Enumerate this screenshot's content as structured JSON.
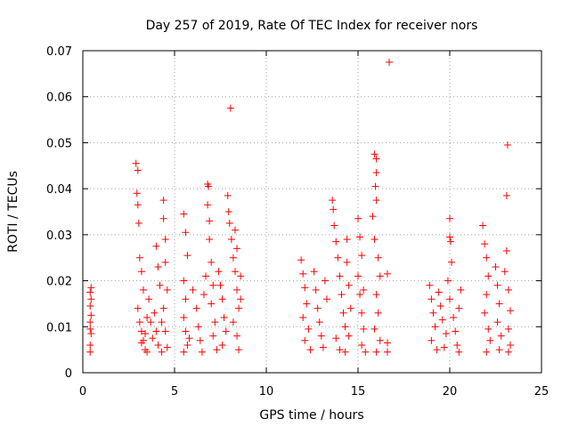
{
  "chart_data": {
    "type": "scatter",
    "title": "Day 257 of 2019, Rate Of TEC Index for receiver nors",
    "xlabel": "GPS time / hours",
    "ylabel": "ROTI / TECUs",
    "xlim": [
      0,
      25
    ],
    "ylim": [
      0,
      0.07
    ],
    "xticks": [
      0,
      5,
      10,
      15,
      20,
      25
    ],
    "xtick_labels": [
      "0",
      "5",
      "10",
      "15",
      "20",
      "25"
    ],
    "yticks": [
      0,
      0.01,
      0.02,
      0.03,
      0.04,
      0.05,
      0.06,
      0.07
    ],
    "ytick_labels": [
      "0",
      "0.01",
      "0.02",
      "0.03",
      "0.04",
      "0.05",
      "0.06",
      "0.07"
    ],
    "grid": true,
    "marker": "+",
    "color": "#ff0000",
    "series": [
      {
        "name": "ROTI",
        "points": [
          [
            0.4,
            0.0045
          ],
          [
            0.4,
            0.006
          ],
          [
            0.45,
            0.0085
          ],
          [
            0.4,
            0.011
          ],
          [
            0.45,
            0.0125
          ],
          [
            0.4,
            0.0145
          ],
          [
            0.45,
            0.016
          ],
          [
            0.4,
            0.0175
          ],
          [
            0.45,
            0.0185
          ],
          [
            0.4,
            0.0095
          ],
          [
            2.9,
            0.0455
          ],
          [
            3.0,
            0.044
          ],
          [
            2.95,
            0.039
          ],
          [
            3.0,
            0.0365
          ],
          [
            3.05,
            0.0325
          ],
          [
            3.1,
            0.025
          ],
          [
            3.2,
            0.022
          ],
          [
            3.3,
            0.018
          ],
          [
            3.0,
            0.014
          ],
          [
            3.1,
            0.011
          ],
          [
            3.2,
            0.009
          ],
          [
            3.3,
            0.007
          ],
          [
            3.4,
            0.005
          ],
          [
            3.5,
            0.012
          ],
          [
            3.6,
            0.016
          ],
          [
            3.2,
            0.0065
          ],
          [
            3.4,
            0.0085
          ],
          [
            3.7,
            0.011
          ],
          [
            3.8,
            0.0075
          ],
          [
            3.5,
            0.0045
          ],
          [
            4.0,
            0.0275
          ],
          [
            4.1,
            0.023
          ],
          [
            4.2,
            0.019
          ],
          [
            3.9,
            0.013
          ],
          [
            4.0,
            0.009
          ],
          [
            4.1,
            0.006
          ],
          [
            4.3,
            0.011
          ],
          [
            4.4,
            0.0375
          ],
          [
            4.4,
            0.0335
          ],
          [
            4.5,
            0.029
          ],
          [
            4.5,
            0.024
          ],
          [
            4.6,
            0.018
          ],
          [
            4.4,
            0.014
          ],
          [
            4.5,
            0.009
          ],
          [
            4.6,
            0.0055
          ],
          [
            4.3,
            0.0045
          ],
          [
            5.5,
            0.0345
          ],
          [
            5.6,
            0.0305
          ],
          [
            5.7,
            0.0255
          ],
          [
            5.5,
            0.02
          ],
          [
            5.6,
            0.016
          ],
          [
            5.5,
            0.012
          ],
          [
            5.6,
            0.009
          ],
          [
            5.7,
            0.006
          ],
          [
            5.5,
            0.0045
          ],
          [
            5.8,
            0.0075
          ],
          [
            6.0,
            0.018
          ],
          [
            6.2,
            0.014
          ],
          [
            6.3,
            0.01
          ],
          [
            6.4,
            0.007
          ],
          [
            6.5,
            0.0045
          ],
          [
            6.6,
            0.017
          ],
          [
            6.7,
            0.021
          ],
          [
            6.8,
            0.041
          ],
          [
            6.85,
            0.0405
          ],
          [
            6.8,
            0.0365
          ],
          [
            6.9,
            0.033
          ],
          [
            6.9,
            0.029
          ],
          [
            7.0,
            0.024
          ],
          [
            7.1,
            0.019
          ],
          [
            7.0,
            0.015
          ],
          [
            7.2,
            0.011
          ],
          [
            7.1,
            0.008
          ],
          [
            7.3,
            0.005
          ],
          [
            7.4,
            0.022
          ],
          [
            7.5,
            0.019
          ],
          [
            7.6,
            0.016
          ],
          [
            7.7,
            0.012
          ],
          [
            7.8,
            0.009
          ],
          [
            7.6,
            0.006
          ],
          [
            7.9,
            0.0385
          ],
          [
            7.95,
            0.035
          ],
          [
            8.0,
            0.0325
          ],
          [
            8.05,
            0.0575
          ],
          [
            8.1,
            0.029
          ],
          [
            8.2,
            0.025
          ],
          [
            8.3,
            0.031
          ],
          [
            8.4,
            0.027
          ],
          [
            8.3,
            0.022
          ],
          [
            8.4,
            0.018
          ],
          [
            8.5,
            0.014
          ],
          [
            8.2,
            0.011
          ],
          [
            8.4,
            0.008
          ],
          [
            8.5,
            0.005
          ],
          [
            8.6,
            0.021
          ],
          [
            8.6,
            0.016
          ],
          [
            11.9,
            0.0245
          ],
          [
            12.0,
            0.0215
          ],
          [
            12.1,
            0.0185
          ],
          [
            12.2,
            0.015
          ],
          [
            12.0,
            0.012
          ],
          [
            12.3,
            0.0095
          ],
          [
            12.1,
            0.007
          ],
          [
            12.4,
            0.005
          ],
          [
            12.6,
            0.022
          ],
          [
            12.7,
            0.018
          ],
          [
            12.8,
            0.014
          ],
          [
            12.9,
            0.011
          ],
          [
            13.0,
            0.008
          ],
          [
            13.1,
            0.0055
          ],
          [
            13.2,
            0.02
          ],
          [
            13.3,
            0.016
          ],
          [
            13.6,
            0.0375
          ],
          [
            13.65,
            0.0355
          ],
          [
            13.7,
            0.032
          ],
          [
            13.8,
            0.0285
          ],
          [
            13.9,
            0.025
          ],
          [
            14.0,
            0.021
          ],
          [
            14.1,
            0.017
          ],
          [
            14.2,
            0.013
          ],
          [
            14.3,
            0.01
          ],
          [
            13.8,
            0.0075
          ],
          [
            14.0,
            0.005
          ],
          [
            14.4,
            0.029
          ],
          [
            14.4,
            0.024
          ],
          [
            14.5,
            0.019
          ],
          [
            14.6,
            0.014
          ],
          [
            14.5,
            0.008
          ],
          [
            14.3,
            0.0045
          ],
          [
            15.0,
            0.0335
          ],
          [
            15.1,
            0.0295
          ],
          [
            15.2,
            0.0255
          ],
          [
            15.0,
            0.021
          ],
          [
            15.1,
            0.017
          ],
          [
            15.2,
            0.013
          ],
          [
            15.3,
            0.0095
          ],
          [
            15.2,
            0.006
          ],
          [
            15.4,
            0.0045
          ],
          [
            15.3,
            0.018
          ],
          [
            15.9,
            0.0475
          ],
          [
            16.0,
            0.0465
          ],
          [
            16.0,
            0.0435
          ],
          [
            15.95,
            0.0405
          ],
          [
            16.0,
            0.0375
          ],
          [
            15.8,
            0.034
          ],
          [
            15.9,
            0.029
          ],
          [
            16.1,
            0.025
          ],
          [
            16.2,
            0.021
          ],
          [
            16.0,
            0.017
          ],
          [
            16.1,
            0.013
          ],
          [
            15.9,
            0.0095
          ],
          [
            16.2,
            0.007
          ],
          [
            16.0,
            0.0045
          ],
          [
            16.7,
            0.0675
          ],
          [
            16.6,
            0.0215
          ],
          [
            16.6,
            0.0065
          ],
          [
            16.6,
            0.0045
          ],
          [
            18.9,
            0.019
          ],
          [
            19.0,
            0.016
          ],
          [
            19.1,
            0.013
          ],
          [
            19.2,
            0.01
          ],
          [
            19.0,
            0.007
          ],
          [
            19.3,
            0.005
          ],
          [
            19.4,
            0.0175
          ],
          [
            19.5,
            0.0145
          ],
          [
            19.6,
            0.0115
          ],
          [
            19.8,
            0.0085
          ],
          [
            19.7,
            0.0055
          ],
          [
            19.9,
            0.02
          ],
          [
            20.0,
            0.0335
          ],
          [
            20.0,
            0.0295
          ],
          [
            20.05,
            0.0285
          ],
          [
            20.1,
            0.024
          ],
          [
            20.0,
            0.016
          ],
          [
            20.2,
            0.012
          ],
          [
            20.3,
            0.009
          ],
          [
            20.4,
            0.006
          ],
          [
            20.5,
            0.0045
          ],
          [
            20.5,
            0.014
          ],
          [
            20.6,
            0.018
          ],
          [
            21.8,
            0.032
          ],
          [
            21.9,
            0.028
          ],
          [
            22.0,
            0.025
          ],
          [
            22.1,
            0.021
          ],
          [
            22.0,
            0.017
          ],
          [
            21.9,
            0.013
          ],
          [
            22.1,
            0.0095
          ],
          [
            22.2,
            0.007
          ],
          [
            22.0,
            0.0045
          ],
          [
            22.5,
            0.023
          ],
          [
            22.6,
            0.019
          ],
          [
            22.7,
            0.015
          ],
          [
            22.6,
            0.011
          ],
          [
            22.8,
            0.008
          ],
          [
            22.7,
            0.005
          ],
          [
            23.0,
            0.022
          ],
          [
            23.1,
            0.0265
          ],
          [
            23.1,
            0.0385
          ],
          [
            23.15,
            0.0495
          ],
          [
            23.2,
            0.018
          ],
          [
            23.3,
            0.0135
          ],
          [
            23.2,
            0.0095
          ],
          [
            23.3,
            0.006
          ],
          [
            23.2,
            0.0045
          ]
        ]
      }
    ]
  }
}
